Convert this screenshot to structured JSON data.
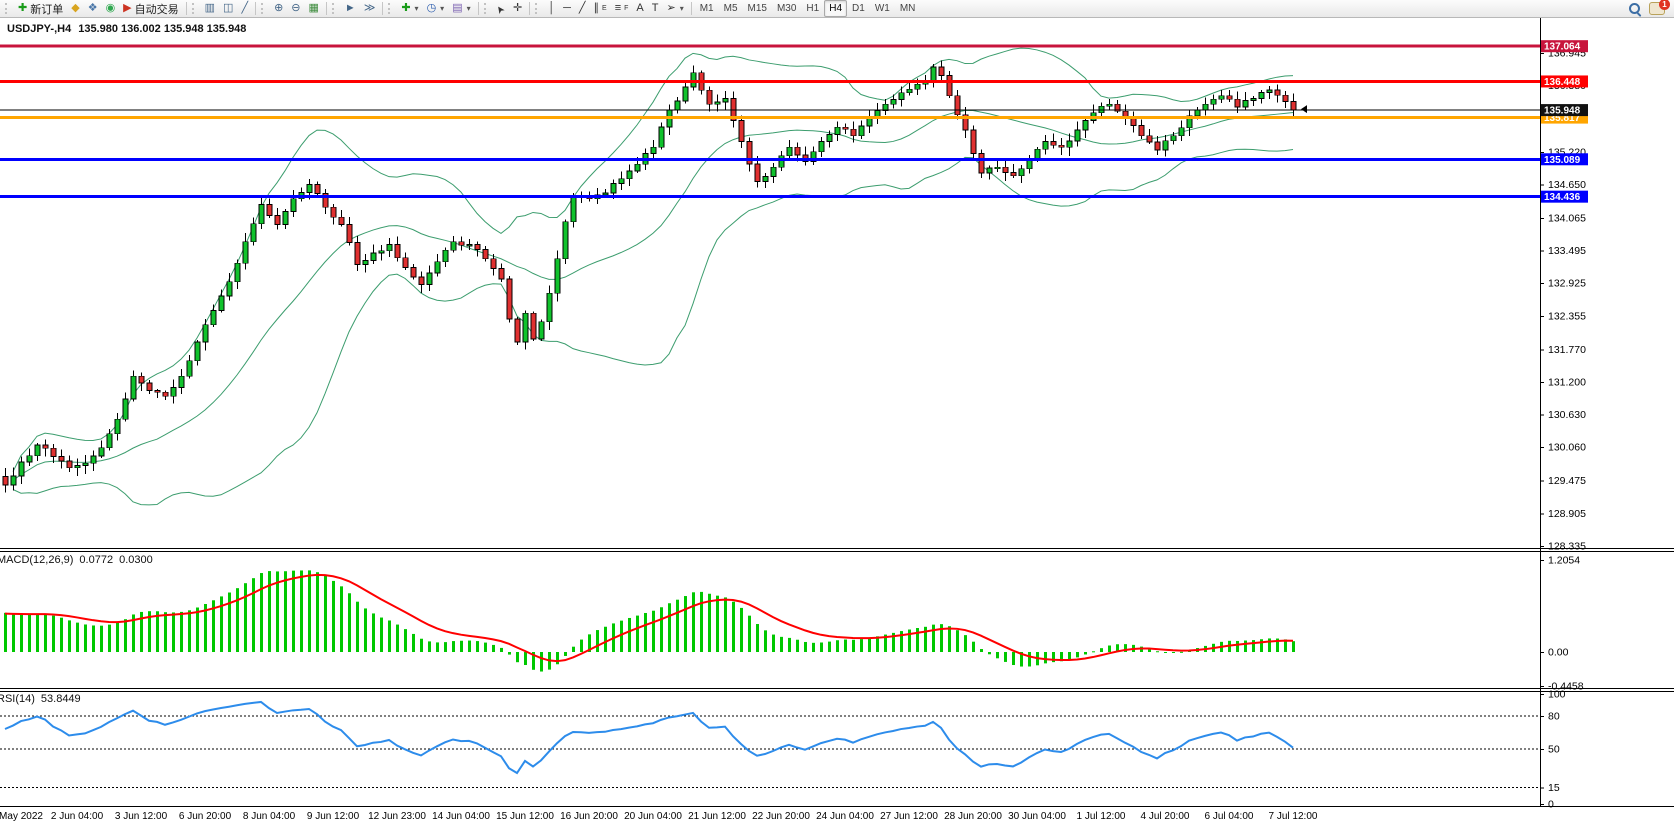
{
  "toolbar": {
    "groups": [
      {
        "name": "trade-group",
        "items": [
          {
            "name": "new-order-button",
            "icon": "new-order",
            "label": "新订单"
          },
          {
            "name": "market-depth-button",
            "icon": "gold"
          },
          {
            "name": "mql5-community-button",
            "icon": "community"
          },
          {
            "name": "signals-button",
            "icon": "signals"
          },
          {
            "name": "autotrading-button",
            "icon": "autotrading",
            "label": "自动交易"
          }
        ]
      },
      {
        "name": "chart-type-group",
        "items": [
          {
            "name": "bar-chart-button",
            "icon": "bar-chart"
          },
          {
            "name": "candlestick-button",
            "icon": "candlestick"
          },
          {
            "name": "line-chart-button",
            "icon": "line-chart"
          }
        ]
      },
      {
        "name": "zoom-group",
        "items": [
          {
            "name": "zoom-in-button",
            "icon": "zoom-in"
          },
          {
            "name": "zoom-out-button",
            "icon": "zoom-out"
          },
          {
            "name": "tile-windows-button",
            "icon": "tile-windows"
          }
        ]
      },
      {
        "name": "scroll-group",
        "items": [
          {
            "name": "auto-scroll-button",
            "icon": "auto-scroll"
          },
          {
            "name": "chart-shift-button",
            "icon": "chart-shift"
          }
        ]
      },
      {
        "name": "objects-group",
        "items": [
          {
            "name": "indicators-button",
            "icon": "indicators",
            "dropdown": true
          },
          {
            "name": "periods-button",
            "icon": "periods",
            "dropdown": true
          },
          {
            "name": "templates-button",
            "icon": "templates",
            "dropdown": true
          }
        ]
      },
      {
        "name": "cursor-group",
        "items": [
          {
            "name": "cursor-button",
            "icon": "cursor"
          },
          {
            "name": "crosshair-button",
            "icon": "crosshair"
          }
        ]
      },
      {
        "name": "drawing-group",
        "items": [
          {
            "name": "vertical-line-button",
            "icon": "vertical-line"
          },
          {
            "name": "horizontal-line-button",
            "icon": "horizontal-line"
          },
          {
            "name": "trendline-button",
            "icon": "trendline"
          },
          {
            "name": "equidistant-channel-button",
            "icon": "equidistant-channel",
            "sub": "E"
          },
          {
            "name": "fibonacci-button",
            "icon": "fibonacci",
            "sub": "F"
          },
          {
            "name": "text-button",
            "icon": "text"
          },
          {
            "name": "text-label-button",
            "icon": "text-label"
          },
          {
            "name": "arrows-button",
            "icon": "arrows",
            "dropdown": true
          }
        ]
      }
    ],
    "timeframes": [
      {
        "label": "M1"
      },
      {
        "label": "M5"
      },
      {
        "label": "M15"
      },
      {
        "label": "M30"
      },
      {
        "label": "H1"
      },
      {
        "label": "H4",
        "active": true
      },
      {
        "label": "D1"
      },
      {
        "label": "W1"
      },
      {
        "label": "MN"
      }
    ],
    "notifications_badge": "1"
  },
  "chart_data": {
    "type": "candlestick",
    "header": {
      "symbol_period": "USDJPY-,H4",
      "quotes": "135.980 136.002 135.948 135.948",
      "open": "135.980",
      "high": "136.002",
      "low": "135.948",
      "close": "135.948"
    },
    "price_axis_ticks": [
      "136.945",
      "136.380",
      "135.220",
      "134.650",
      "134.065",
      "133.495",
      "132.925",
      "132.355",
      "131.770",
      "131.200",
      "130.630",
      "130.060",
      "129.475",
      "128.905",
      "128.335"
    ],
    "levels": [
      {
        "name": "resistance-line-1",
        "price": "137.064",
        "v": 137.064,
        "color": "#C8143C",
        "width": 3
      },
      {
        "name": "resistance-line-2",
        "price": "136.448",
        "v": 136.448,
        "color": "#FF0000",
        "width": 3
      },
      {
        "name": "pivot-line",
        "price": "135.817",
        "v": 135.817,
        "color": "#FFA500",
        "width": 3
      },
      {
        "name": "support-line-1",
        "price": "135.089",
        "v": 135.089,
        "color": "#0000FF",
        "width": 3
      },
      {
        "name": "support-line-2",
        "price": "134.436",
        "v": 134.436,
        "color": "#0000FF",
        "width": 3
      }
    ],
    "current_price": {
      "price": "135.948",
      "v": 135.948,
      "color": "#000000"
    },
    "bars_total": 162,
    "close_anchors": [
      [
        0,
        129.4
      ],
      [
        2,
        129.8
      ],
      [
        4,
        130.1
      ],
      [
        6,
        129.9
      ],
      [
        8,
        129.7
      ],
      [
        10,
        129.78
      ],
      [
        12,
        130.05
      ],
      [
        14,
        130.55
      ],
      [
        16,
        131.3
      ],
      [
        18,
        131.05
      ],
      [
        20,
        130.95
      ],
      [
        22,
        131.3
      ],
      [
        24,
        131.9
      ],
      [
        26,
        132.45
      ],
      [
        28,
        132.95
      ],
      [
        30,
        133.65
      ],
      [
        32,
        134.3
      ],
      [
        34,
        133.95
      ],
      [
        36,
        134.4
      ],
      [
        38,
        134.65
      ],
      [
        40,
        134.25
      ],
      [
        42,
        133.95
      ],
      [
        44,
        133.25
      ],
      [
        46,
        133.45
      ],
      [
        48,
        133.6
      ],
      [
        50,
        133.2
      ],
      [
        52,
        132.9
      ],
      [
        54,
        133.3
      ],
      [
        56,
        133.65
      ],
      [
        58,
        133.6
      ],
      [
        60,
        133.35
      ],
      [
        62,
        133.0
      ],
      [
        63,
        132.3
      ],
      [
        64,
        131.9
      ],
      [
        65,
        132.4
      ],
      [
        66,
        131.95
      ],
      [
        67,
        132.25
      ],
      [
        68,
        132.75
      ],
      [
        69,
        133.35
      ],
      [
        70,
        134.0
      ],
      [
        71,
        134.45
      ],
      [
        73,
        134.4
      ],
      [
        75,
        134.5
      ],
      [
        77,
        134.75
      ],
      [
        79,
        135.0
      ],
      [
        81,
        135.3
      ],
      [
        83,
        135.95
      ],
      [
        85,
        136.35
      ],
      [
        86,
        136.6
      ],
      [
        88,
        136.05
      ],
      [
        90,
        136.15
      ],
      [
        92,
        135.4
      ],
      [
        94,
        134.7
      ],
      [
        96,
        134.95
      ],
      [
        98,
        135.3
      ],
      [
        100,
        135.05
      ],
      [
        102,
        135.4
      ],
      [
        104,
        135.65
      ],
      [
        106,
        135.5
      ],
      [
        108,
        135.8
      ],
      [
        110,
        136.05
      ],
      [
        112,
        136.25
      ],
      [
        114,
        136.4
      ],
      [
        115,
        136.45
      ],
      [
        116,
        136.7
      ],
      [
        117,
        136.55
      ],
      [
        118,
        136.2
      ],
      [
        120,
        135.6
      ],
      [
        122,
        134.85
      ],
      [
        124,
        134.95
      ],
      [
        126,
        134.8
      ],
      [
        128,
        135.1
      ],
      [
        130,
        135.4
      ],
      [
        132,
        135.3
      ],
      [
        134,
        135.6
      ],
      [
        136,
        135.9
      ],
      [
        138,
        136.05
      ],
      [
        140,
        135.8
      ],
      [
        142,
        135.5
      ],
      [
        144,
        135.25
      ],
      [
        146,
        135.5
      ],
      [
        148,
        135.85
      ],
      [
        150,
        136.05
      ],
      [
        152,
        136.2
      ],
      [
        154,
        136.0
      ],
      [
        156,
        136.15
      ],
      [
        158,
        136.3
      ],
      [
        160,
        136.1
      ],
      [
        161,
        135.948
      ]
    ],
    "bollinger": {
      "period": 20,
      "deviation": 2,
      "color": "#3C9D6E"
    },
    "candle_colors": {
      "up": "#10C22C",
      "down": "#E03030",
      "outline": "#000000"
    },
    "macd": {
      "label": "MACD(12,26,9)",
      "value": "0.0772",
      "signal_value": "0.0300",
      "scale": [
        {
          "label": "1.2054",
          "v": 1.2054
        },
        {
          "label": "0.00",
          "v": 0
        },
        {
          "label": "-0.4458",
          "v": -0.4458
        }
      ],
      "histogram_color": "#00C800",
      "signal_color": "#FF0000"
    },
    "rsi": {
      "label": "RSI(14)",
      "value": "53.8449",
      "line_color": "#2D8CEB",
      "scale": [
        {
          "label": "100",
          "v": 100
        },
        {
          "label": "80",
          "v": 80,
          "dashed": true
        },
        {
          "label": "50",
          "v": 50,
          "dashed": true
        },
        {
          "label": "15",
          "v": 15,
          "dashed": true
        },
        {
          "label": "0",
          "v": 0
        }
      ]
    },
    "x_axis_labels": [
      {
        "bar": 2,
        "label": "May 2022"
      },
      {
        "bar": 9,
        "label": "2 Jun 04:00"
      },
      {
        "bar": 17,
        "label": "3 Jun 12:00"
      },
      {
        "bar": 25,
        "label": "6 Jun 20:00"
      },
      {
        "bar": 33,
        "label": "8 Jun 04:00"
      },
      {
        "bar": 41,
        "label": "9 Jun 12:00"
      },
      {
        "bar": 49,
        "label": "12 Jun 23:00"
      },
      {
        "bar": 57,
        "label": "14 Jun 04:00"
      },
      {
        "bar": 65,
        "label": "15 Jun 12:00"
      },
      {
        "bar": 73,
        "label": "16 Jun 20:00"
      },
      {
        "bar": 81,
        "label": "20 Jun 04:00"
      },
      {
        "bar": 89,
        "label": "21 Jun 12:00"
      },
      {
        "bar": 97,
        "label": "22 Jun 20:00"
      },
      {
        "bar": 105,
        "label": "24 Jun 04:00"
      },
      {
        "bar": 113,
        "label": "27 Jun 12:00"
      },
      {
        "bar": 121,
        "label": "28 Jun 20:00"
      },
      {
        "bar": 129,
        "label": "30 Jun 04:00"
      },
      {
        "bar": 137,
        "label": "1 Jul 12:00"
      },
      {
        "bar": 145,
        "label": "4 Jul 20:00"
      },
      {
        "bar": 153,
        "label": "6 Jul 04:00"
      },
      {
        "bar": 161,
        "label": "7 Jul 12:00"
      }
    ]
  }
}
